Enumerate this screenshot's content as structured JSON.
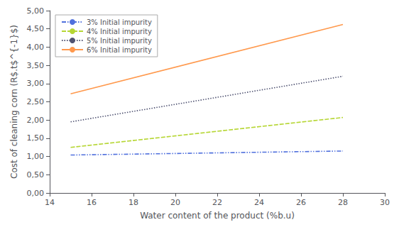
{
  "chart_data": {
    "type": "line",
    "xlabel": "Water content of the product (%b.u)",
    "ylabel": "Cost of cleaning corn (R$.t$^{-1}$)",
    "x": [
      15,
      28
    ],
    "series": [
      {
        "name": "3% Initial impurity",
        "values": [
          1.04,
          1.15
        ],
        "line_style": "dashdotdot"
      },
      {
        "name": "4% Initial impurity",
        "values": [
          1.25,
          2.07
        ],
        "line_style": "dashed"
      },
      {
        "name": "5% Initial impurity",
        "values": [
          1.95,
          3.2
        ],
        "line_style": "dotted"
      },
      {
        "name": "6% Initial impurity",
        "values": [
          2.72,
          4.62
        ],
        "line_style": "solid"
      }
    ],
    "xlim": [
      14,
      30
    ],
    "xticks": [
      14,
      16,
      18,
      20,
      22,
      24,
      26,
      28,
      30
    ],
    "ylim": [
      0.0,
      5.0
    ],
    "yticks": [
      {
        "value": 0.0,
        "label": "0,00"
      },
      {
        "value": 0.5,
        "label": "0,50"
      },
      {
        "value": 1.0,
        "label": "1,00"
      },
      {
        "value": 1.5,
        "label": "1,50"
      },
      {
        "value": 2.0,
        "label": "2,00"
      },
      {
        "value": 2.5,
        "label": "2,50"
      },
      {
        "value": 3.0,
        "label": "3,00"
      },
      {
        "value": 3.5,
        "label": "3,50"
      },
      {
        "value": 4.0,
        "label": "4,00"
      },
      {
        "value": 4.5,
        "label": "4,50"
      },
      {
        "value": 5.0,
        "label": "5,00"
      }
    ],
    "grid": false,
    "legend": "upper left"
  }
}
